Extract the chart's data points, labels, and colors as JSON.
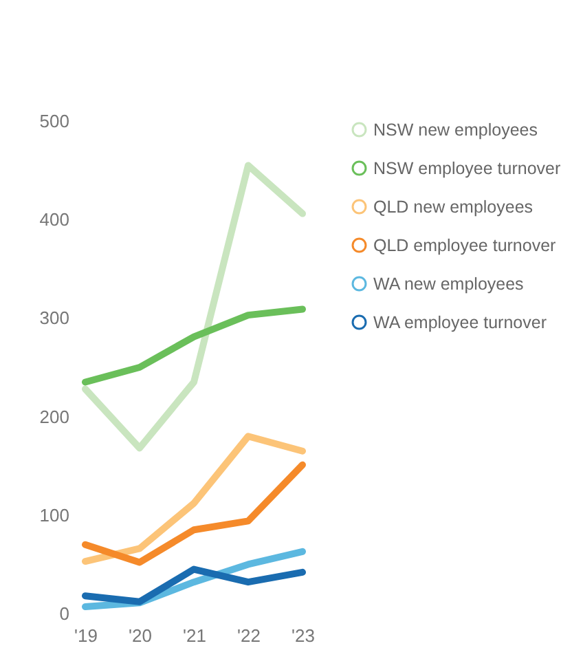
{
  "chart_data": {
    "type": "line",
    "categories": [
      "'19",
      "'20",
      "'21",
      "'22",
      "'23"
    ],
    "ylim": [
      0,
      500
    ],
    "yticks": [
      0,
      100,
      200,
      300,
      400,
      500
    ],
    "grid": false,
    "legend": "right",
    "marker": "none",
    "line_style": "solid",
    "series": [
      {
        "name": "NSW new employees",
        "color": "#c9e5bf",
        "values": [
          228,
          168,
          235,
          455,
          406
        ]
      },
      {
        "name": "NSW employee turnover",
        "color": "#6abf5a",
        "values": [
          235,
          250,
          281,
          303,
          309
        ]
      },
      {
        "name": "QLD new employees",
        "color": "#fcc478",
        "values": [
          53,
          66,
          112,
          180,
          165
        ]
      },
      {
        "name": "QLD employee turnover",
        "color": "#f58a2a",
        "values": [
          70,
          52,
          85,
          94,
          151
        ]
      },
      {
        "name": "WA new employees",
        "color": "#5cb8e0",
        "values": [
          7,
          11,
          32,
          50,
          63
        ]
      },
      {
        "name": "WA employee turnover",
        "color": "#1a6cb0",
        "values": [
          18,
          12,
          45,
          32,
          42
        ]
      }
    ]
  }
}
